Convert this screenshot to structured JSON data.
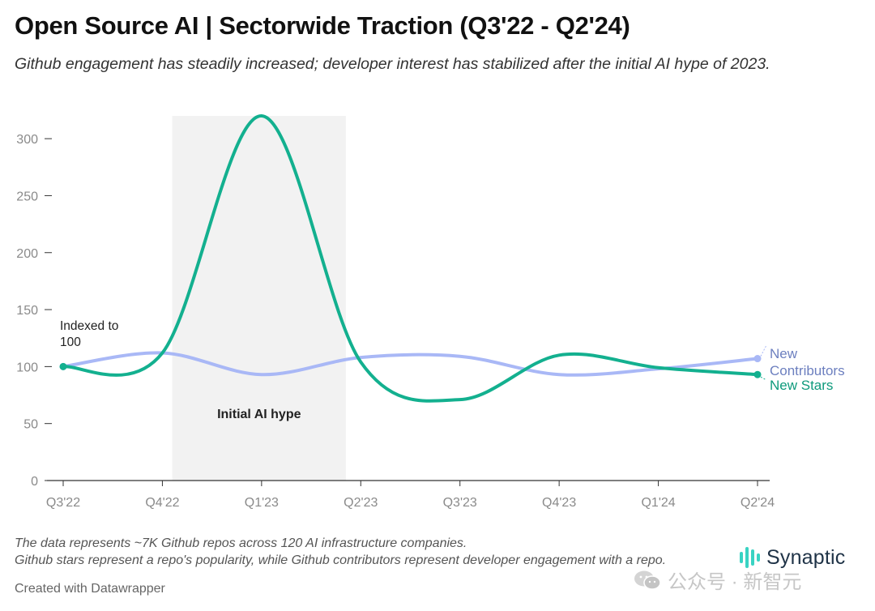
{
  "header": {
    "title": "Open Source AI | Sectorwide Traction (Q3'22 - Q2'24)",
    "subtitle": "Github engagement has steadily increased; developer interest has stabilized after the initial AI hype of 2023."
  },
  "chart_data": {
    "type": "line",
    "x": [
      "Q3'22",
      "Q4'22",
      "Q1'23",
      "Q2'23",
      "Q3'23",
      "Q4'23",
      "Q1'24",
      "Q2'24"
    ],
    "ylim": [
      0,
      320
    ],
    "yticks": [
      0,
      50,
      100,
      150,
      200,
      250,
      300
    ],
    "grid": false,
    "legend": "right (inline labels at line ends)",
    "series": [
      {
        "name": "New Contributors",
        "label_lines": [
          "New",
          "Contributors"
        ],
        "color": "#a9b8f6",
        "label_color": "#6c7fbf",
        "values": [
          100,
          112,
          93,
          108,
          109,
          93,
          98,
          107
        ]
      },
      {
        "name": "New Stars",
        "label_lines": [
          "New Stars"
        ],
        "color": "#13b08f",
        "label_color": "#0e9a7c",
        "values": [
          100,
          112,
          320,
          104,
          71,
          110,
          99,
          93
        ]
      }
    ],
    "highlight": {
      "label": "Initial AI hype",
      "from": 1.1,
      "to": 2.85,
      "color": "#f2f2f2"
    },
    "annotation": {
      "lines": [
        "Indexed to",
        "100"
      ],
      "x_index": 0,
      "y": 100
    }
  },
  "footer": {
    "note_1": "The data represents ~7K Github repos across 120 AI infrastructure companies.",
    "note_2": "Github stars represent a repo's popularity, while Github contributors represent developer engagement with a repo.",
    "credit": "Created with Datawrapper"
  },
  "brand": {
    "name": "Synaptic",
    "color": "#39d3c3"
  },
  "watermark": {
    "text": "公众号 · 新智元"
  }
}
